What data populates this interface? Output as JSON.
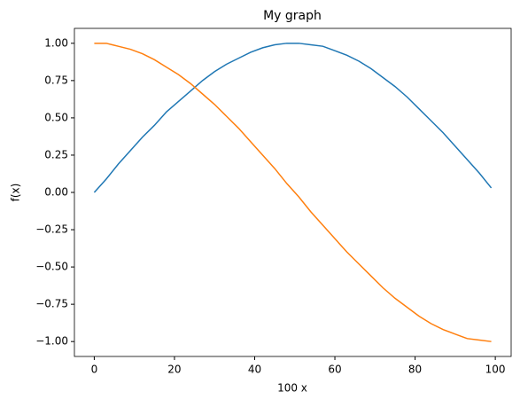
{
  "chart_data": {
    "type": "line",
    "title": "My graph",
    "x_label": "100 x",
    "y_label": "f(x)",
    "x": [
      0,
      3,
      6,
      9,
      12,
      15,
      18,
      21,
      24,
      27,
      30,
      33,
      36,
      39,
      42,
      45,
      48,
      51,
      54,
      57,
      60,
      63,
      66,
      69,
      72,
      75,
      78,
      81,
      84,
      87,
      90,
      93,
      96,
      99
    ],
    "series": [
      {
        "color": "#1f77b4",
        "values": [
          0,
          0.09,
          0.19,
          0.28,
          0.37,
          0.45,
          0.54,
          0.61,
          0.68,
          0.75,
          0.81,
          0.86,
          0.9,
          0.94,
          0.97,
          0.99,
          1,
          1,
          0.99,
          0.98,
          0.95,
          0.92,
          0.88,
          0.83,
          0.77,
          0.71,
          0.64,
          0.56,
          0.48,
          0.4,
          0.31,
          0.22,
          0.13,
          0.03
        ]
      },
      {
        "color": "#ff7f0e",
        "values": [
          1,
          1,
          0.98,
          0.96,
          0.93,
          0.89,
          0.84,
          0.79,
          0.73,
          0.66,
          0.59,
          0.51,
          0.43,
          0.34,
          0.25,
          0.16,
          0.06,
          -0.03,
          -0.13,
          -0.22,
          -0.31,
          -0.4,
          -0.48,
          -0.56,
          -0.64,
          -0.71,
          -0.77,
          -0.83,
          -0.88,
          -0.92,
          -0.95,
          -0.98,
          -0.99,
          -1
        ]
      }
    ],
    "xlim": [
      -4.95,
      103.95
    ],
    "ylim": [
      -1.1,
      1.1
    ],
    "xticks": [
      0,
      20,
      40,
      60,
      80,
      100
    ],
    "yticks": [
      {
        "value": -1,
        "label": "−1.00"
      },
      {
        "value": -0.75,
        "label": "−0.75"
      },
      {
        "value": -0.5,
        "label": "−0.50"
      },
      {
        "value": -0.25,
        "label": "−0.25"
      },
      {
        "value": 0,
        "label": "0.00"
      },
      {
        "value": 0.25,
        "label": "0.25"
      },
      {
        "value": 0.5,
        "label": "0.50"
      },
      {
        "value": 0.75,
        "label": "0.75"
      },
      {
        "value": 1,
        "label": "1.00"
      }
    ]
  }
}
